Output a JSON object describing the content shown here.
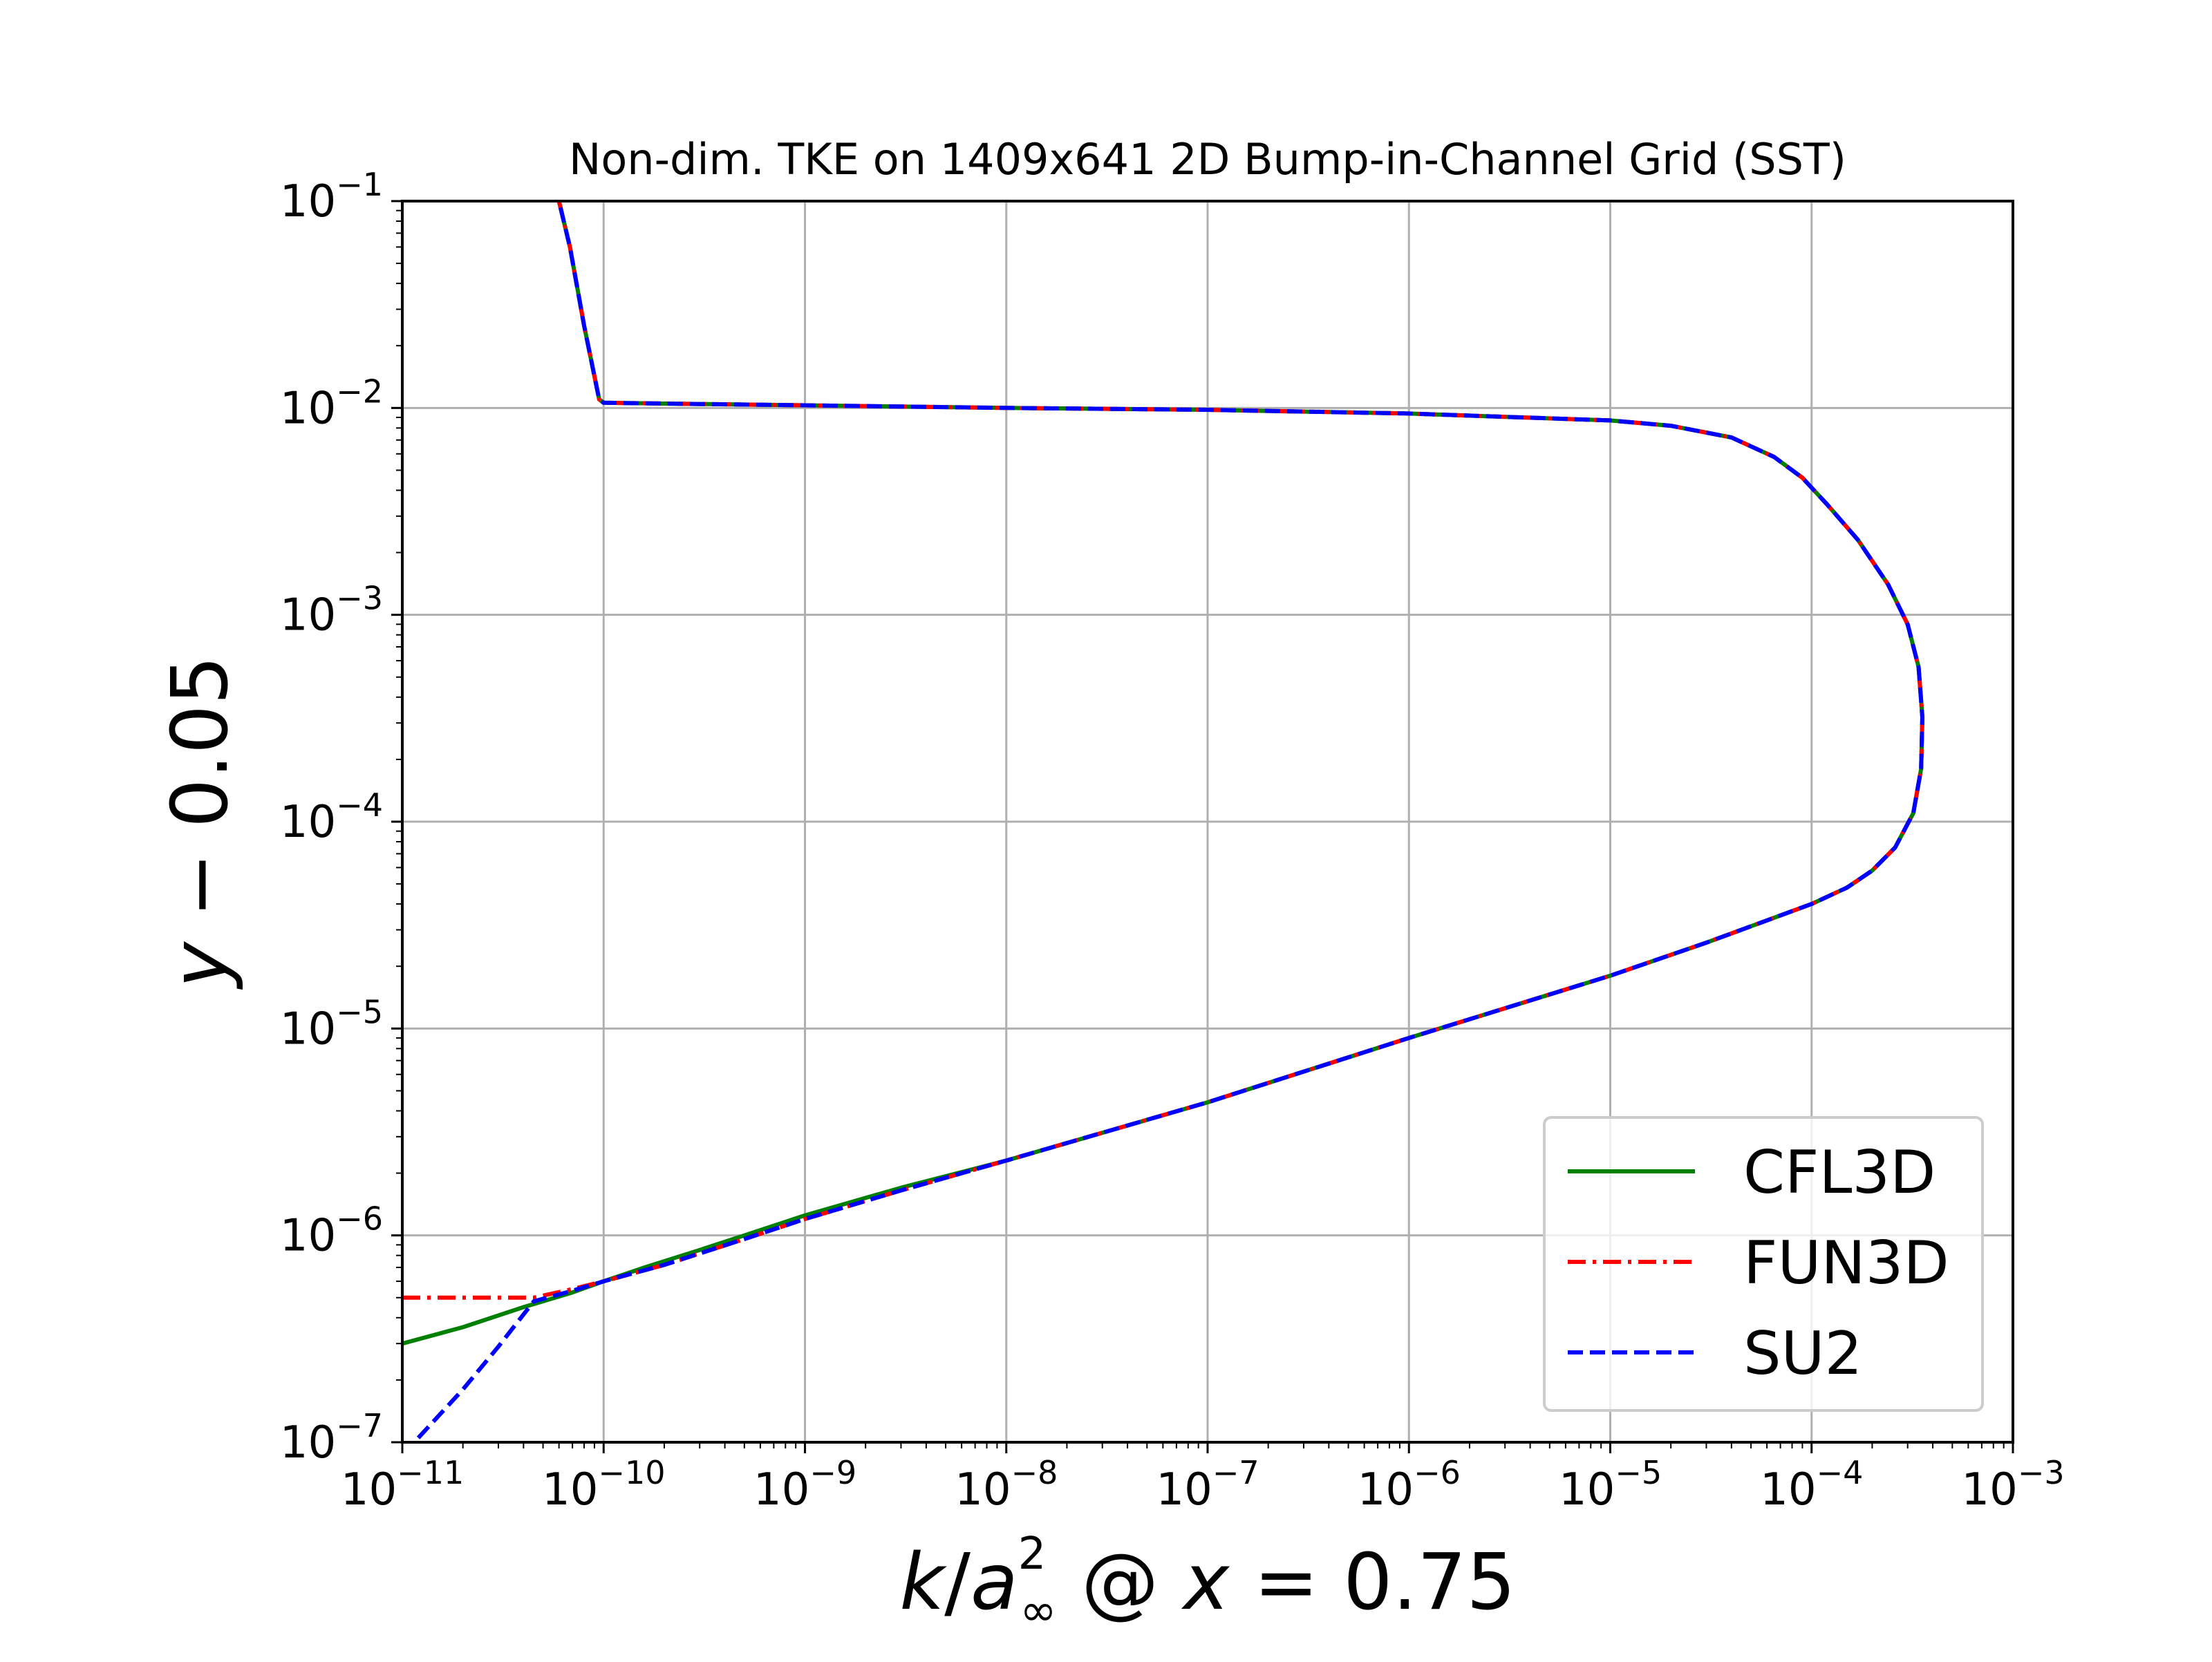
{
  "chart_data": {
    "type": "line",
    "title": "Non-dim. TKE on 1409x641 2D Bump-in-Channel Grid (SST)",
    "xlabel": {
      "k": "k",
      "slash": "/",
      "a": "a",
      "sub": "∞",
      "sup": "2",
      "at": " @ ",
      "x": "x",
      "eq": " = 0.75"
    },
    "ylabel": {
      "y": "y",
      "rest": " − 0.05"
    },
    "x_scale": "log",
    "y_scale": "log",
    "xlim": [
      1e-11,
      0.001
    ],
    "ylim": [
      1e-07,
      0.1
    ],
    "x_ticks": [
      {
        "base": "10",
        "exp": "−11",
        "value": 1e-11
      },
      {
        "base": "10",
        "exp": "−10",
        "value": 1e-10
      },
      {
        "base": "10",
        "exp": "−9",
        "value": 1e-09
      },
      {
        "base": "10",
        "exp": "−8",
        "value": 1e-08
      },
      {
        "base": "10",
        "exp": "−7",
        "value": 1e-07
      },
      {
        "base": "10",
        "exp": "−6",
        "value": 1e-06
      },
      {
        "base": "10",
        "exp": "−5",
        "value": 1e-05
      },
      {
        "base": "10",
        "exp": "−4",
        "value": 0.0001
      },
      {
        "base": "10",
        "exp": "−3",
        "value": 0.001
      }
    ],
    "y_ticks": [
      {
        "base": "10",
        "exp": "−7",
        "value": 1e-07
      },
      {
        "base": "10",
        "exp": "−6",
        "value": 1e-06
      },
      {
        "base": "10",
        "exp": "−5",
        "value": 1e-05
      },
      {
        "base": "10",
        "exp": "−4",
        "value": 0.0001
      },
      {
        "base": "10",
        "exp": "−3",
        "value": 0.001
      },
      {
        "base": "10",
        "exp": "−2",
        "value": 0.01
      },
      {
        "base": "10",
        "exp": "−1",
        "value": 0.1
      }
    ],
    "grid": true,
    "legend_position": "lower-right",
    "colors": {
      "CFL3D": "#008000",
      "FUN3D": "#ff0000",
      "SU2": "#0000ff",
      "grid": "#b0b0b0",
      "axes": "#000000"
    },
    "series": [
      {
        "name": "CFL3D",
        "style": "solid",
        "points": [
          [
            1e-11,
            3e-07
          ],
          [
            2e-11,
            3.6e-07
          ],
          [
            4e-11,
            4.5e-07
          ],
          [
            7e-11,
            5.3e-07
          ],
          [
            1e-10,
            6e-07
          ],
          [
            1.6e-10,
            7e-07
          ],
          [
            3e-10,
            8.5e-07
          ],
          [
            5e-10,
            1e-06
          ],
          [
            1e-09,
            1.25e-06
          ],
          [
            3e-09,
            1.7e-06
          ],
          [
            1e-08,
            2.3e-06
          ],
          [
            1e-07,
            4.4e-06
          ],
          [
            1e-06,
            9e-06
          ],
          [
            1e-05,
            1.8e-05
          ],
          [
            3e-05,
            2.6e-05
          ],
          [
            0.0001,
            4e-05
          ],
          [
            0.00015,
            4.8e-05
          ],
          [
            0.0002,
            5.8e-05
          ],
          [
            0.00026,
            7.5e-05
          ],
          [
            0.00032,
            0.00011
          ],
          [
            0.00035,
            0.00018
          ],
          [
            0.000355,
            0.00032
          ],
          [
            0.00034,
            0.00056
          ],
          [
            0.0003,
            0.0009
          ],
          [
            0.00024,
            0.0014
          ],
          [
            0.00017,
            0.0023
          ],
          [
            0.00012,
            0.0034
          ],
          [
            9e-05,
            0.0046
          ],
          [
            6.5e-05,
            0.0058
          ],
          [
            4e-05,
            0.0072
          ],
          [
            2e-05,
            0.0082
          ],
          [
            1e-05,
            0.0087
          ],
          [
            1e-06,
            0.0094
          ],
          [
            1e-07,
            0.0098
          ],
          [
            1e-08,
            0.01
          ],
          [
            1e-09,
            0.0103
          ],
          [
            2e-10,
            0.0105
          ],
          [
            1e-10,
            0.0106
          ],
          [
            9.5e-11,
            0.011
          ],
          [
            8e-11,
            0.025
          ],
          [
            6.8e-11,
            0.06
          ],
          [
            6e-11,
            0.1
          ]
        ]
      },
      {
        "name": "FUN3D",
        "style": "dashdot",
        "points": [
          [
            1e-11,
            5e-07
          ],
          [
            2.5e-11,
            5e-07
          ],
          [
            4.5e-11,
            5e-07
          ],
          [
            7e-11,
            5.5e-07
          ],
          [
            1e-10,
            6e-07
          ],
          [
            2e-10,
            7.2e-07
          ],
          [
            5e-10,
            9.6e-07
          ],
          [
            1e-09,
            1.2e-06
          ],
          [
            3e-09,
            1.65e-06
          ],
          [
            1e-08,
            2.3e-06
          ],
          [
            1e-07,
            4.4e-06
          ],
          [
            1e-06,
            9e-06
          ],
          [
            1e-05,
            1.8e-05
          ],
          [
            3e-05,
            2.6e-05
          ],
          [
            0.0001,
            4e-05
          ],
          [
            0.00015,
            4.8e-05
          ],
          [
            0.0002,
            5.8e-05
          ],
          [
            0.00026,
            7.5e-05
          ],
          [
            0.00032,
            0.00011
          ],
          [
            0.00035,
            0.00018
          ],
          [
            0.000355,
            0.00032
          ],
          [
            0.00034,
            0.00056
          ],
          [
            0.0003,
            0.0009
          ],
          [
            0.00024,
            0.0014
          ],
          [
            0.00017,
            0.0023
          ],
          [
            0.00012,
            0.0034
          ],
          [
            9e-05,
            0.0046
          ],
          [
            6.5e-05,
            0.0058
          ],
          [
            4e-05,
            0.0072
          ],
          [
            2e-05,
            0.0082
          ],
          [
            1e-05,
            0.0087
          ],
          [
            1e-06,
            0.0094
          ],
          [
            1e-07,
            0.0098
          ],
          [
            1e-08,
            0.01
          ],
          [
            1e-09,
            0.0103
          ],
          [
            2e-10,
            0.0105
          ],
          [
            1e-10,
            0.0106
          ],
          [
            9.5e-11,
            0.011
          ],
          [
            8e-11,
            0.025
          ],
          [
            6.8e-11,
            0.06
          ],
          [
            6e-11,
            0.1
          ]
        ]
      },
      {
        "name": "SU2",
        "style": "dashed",
        "points": [
          [
            1.2e-11,
            1.05e-07
          ],
          [
            2e-11,
            1.8e-07
          ],
          [
            3e-11,
            2.9e-07
          ],
          [
            4.5e-11,
            4.8e-07
          ],
          [
            7e-11,
            5.4e-07
          ],
          [
            1e-10,
            6e-07
          ],
          [
            2e-10,
            7.2e-07
          ],
          [
            5e-10,
            9.6e-07
          ],
          [
            1e-09,
            1.2e-06
          ],
          [
            3e-09,
            1.65e-06
          ],
          [
            1e-08,
            2.3e-06
          ],
          [
            1e-07,
            4.4e-06
          ],
          [
            1e-06,
            9e-06
          ],
          [
            1e-05,
            1.8e-05
          ],
          [
            3e-05,
            2.6e-05
          ],
          [
            0.0001,
            4e-05
          ],
          [
            0.00015,
            4.8e-05
          ],
          [
            0.0002,
            5.8e-05
          ],
          [
            0.00026,
            7.5e-05
          ],
          [
            0.00032,
            0.00011
          ],
          [
            0.00035,
            0.00018
          ],
          [
            0.000355,
            0.00032
          ],
          [
            0.00034,
            0.00056
          ],
          [
            0.0003,
            0.0009
          ],
          [
            0.00024,
            0.0014
          ],
          [
            0.00017,
            0.0023
          ],
          [
            0.00012,
            0.0034
          ],
          [
            9e-05,
            0.0046
          ],
          [
            6.5e-05,
            0.0058
          ],
          [
            4e-05,
            0.0072
          ],
          [
            2e-05,
            0.0082
          ],
          [
            1e-05,
            0.0087
          ],
          [
            1e-06,
            0.0094
          ],
          [
            1e-07,
            0.0098
          ],
          [
            1e-08,
            0.01
          ],
          [
            1e-09,
            0.0103
          ],
          [
            2e-10,
            0.0105
          ],
          [
            1e-10,
            0.0106
          ],
          [
            9.5e-11,
            0.011
          ],
          [
            8e-11,
            0.025
          ],
          [
            6.8e-11,
            0.06
          ],
          [
            6e-11,
            0.1
          ]
        ]
      }
    ]
  }
}
